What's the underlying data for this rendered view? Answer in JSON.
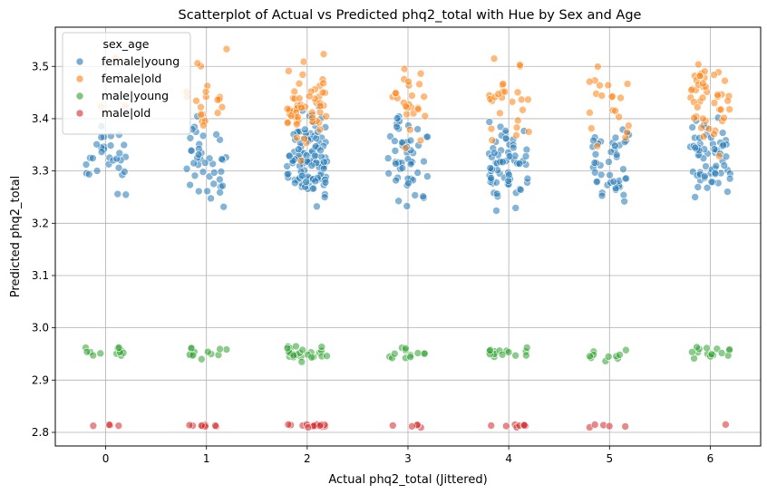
{
  "chart_data": {
    "type": "scatter",
    "title": "Scatterplot of Actual vs Predicted phq2_total with Hue by Sex and Age",
    "xlabel": "Actual phq2_total (Jittered)",
    "ylabel": "Predicted phq2_total",
    "xlim": [
      -0.5,
      6.5
    ],
    "ylim": [
      2.774,
      3.575
    ],
    "xticks": [
      0,
      1,
      2,
      3,
      4,
      5,
      6
    ],
    "yticks": [
      2.8,
      2.9,
      3.0,
      3.1,
      3.2,
      3.3,
      3.4,
      3.5
    ],
    "grid": true,
    "legend": {
      "title": "sex_age",
      "placement": "top-left"
    },
    "series": [
      {
        "name": "female|young",
        "color": "#1f77b4",
        "x_centers": [
          0,
          1,
          2,
          3,
          4,
          5,
          6
        ],
        "counts": [
          30,
          40,
          110,
          50,
          65,
          45,
          60
        ],
        "y_range": [
          3.2,
          3.44
        ]
      },
      {
        "name": "female|old",
        "color": "#ff7f0e",
        "x_centers": [
          0,
          1,
          2,
          3,
          4,
          5,
          6
        ],
        "counts": [
          3,
          20,
          55,
          25,
          25,
          20,
          45
        ],
        "y_range": [
          3.31,
          3.55
        ]
      },
      {
        "name": "male|young",
        "color": "#2ca02c",
        "x_centers": [
          0,
          1,
          2,
          3,
          4,
          5,
          6
        ],
        "counts": [
          12,
          12,
          25,
          12,
          15,
          10,
          15
        ],
        "y_range": [
          2.932,
          2.972
        ]
      },
      {
        "name": "male|old",
        "color": "#d62728",
        "x_centers": [
          0,
          1,
          2,
          3,
          4,
          5,
          6
        ],
        "counts": [
          4,
          8,
          15,
          5,
          8,
          5,
          1
        ],
        "y_range": [
          2.808,
          2.818
        ]
      }
    ]
  }
}
